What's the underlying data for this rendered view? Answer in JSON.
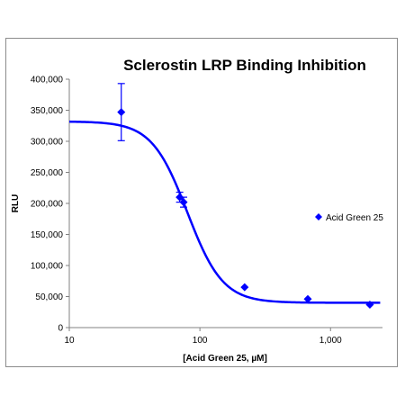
{
  "chart_data": {
    "type": "scatter",
    "title": "Sclerostin LRP Binding Inhibition",
    "xlabel": "[Acid Green 25, µM]",
    "ylabel": "RLU",
    "x_scale": "log",
    "xlim": [
      10,
      2500
    ],
    "ylim": [
      0,
      400000
    ],
    "x_ticks": [
      10,
      100,
      1000
    ],
    "x_tick_labels": [
      "10",
      "100",
      "1,000"
    ],
    "y_ticks": [
      0,
      50000,
      100000,
      150000,
      200000,
      250000,
      300000,
      350000,
      400000
    ],
    "y_tick_labels": [
      "0",
      "50,000",
      "100,000",
      "150,000",
      "200,000",
      "250,000",
      "300,000",
      "350,000",
      "400,000"
    ],
    "grid": false,
    "legend_position": "right",
    "series": [
      {
        "name": "Acid Green 25",
        "marker": "diamond",
        "color": "#0000ff",
        "points": [
          {
            "x": 25,
            "y": 347000,
            "err": 46000
          },
          {
            "x": 70,
            "y": 210000,
            "err": 8000
          },
          {
            "x": 75,
            "y": 202000,
            "err": 8000
          },
          {
            "x": 220,
            "y": 65000,
            "err": 0
          },
          {
            "x": 670,
            "y": 46000,
            "err": 0
          },
          {
            "x": 2000,
            "y": 37000,
            "err": 0
          }
        ]
      }
    ],
    "fit_curve": {
      "type": "4PL",
      "top": 332000,
      "bottom": 40000,
      "ec50": 80,
      "hill": 3.2
    }
  }
}
